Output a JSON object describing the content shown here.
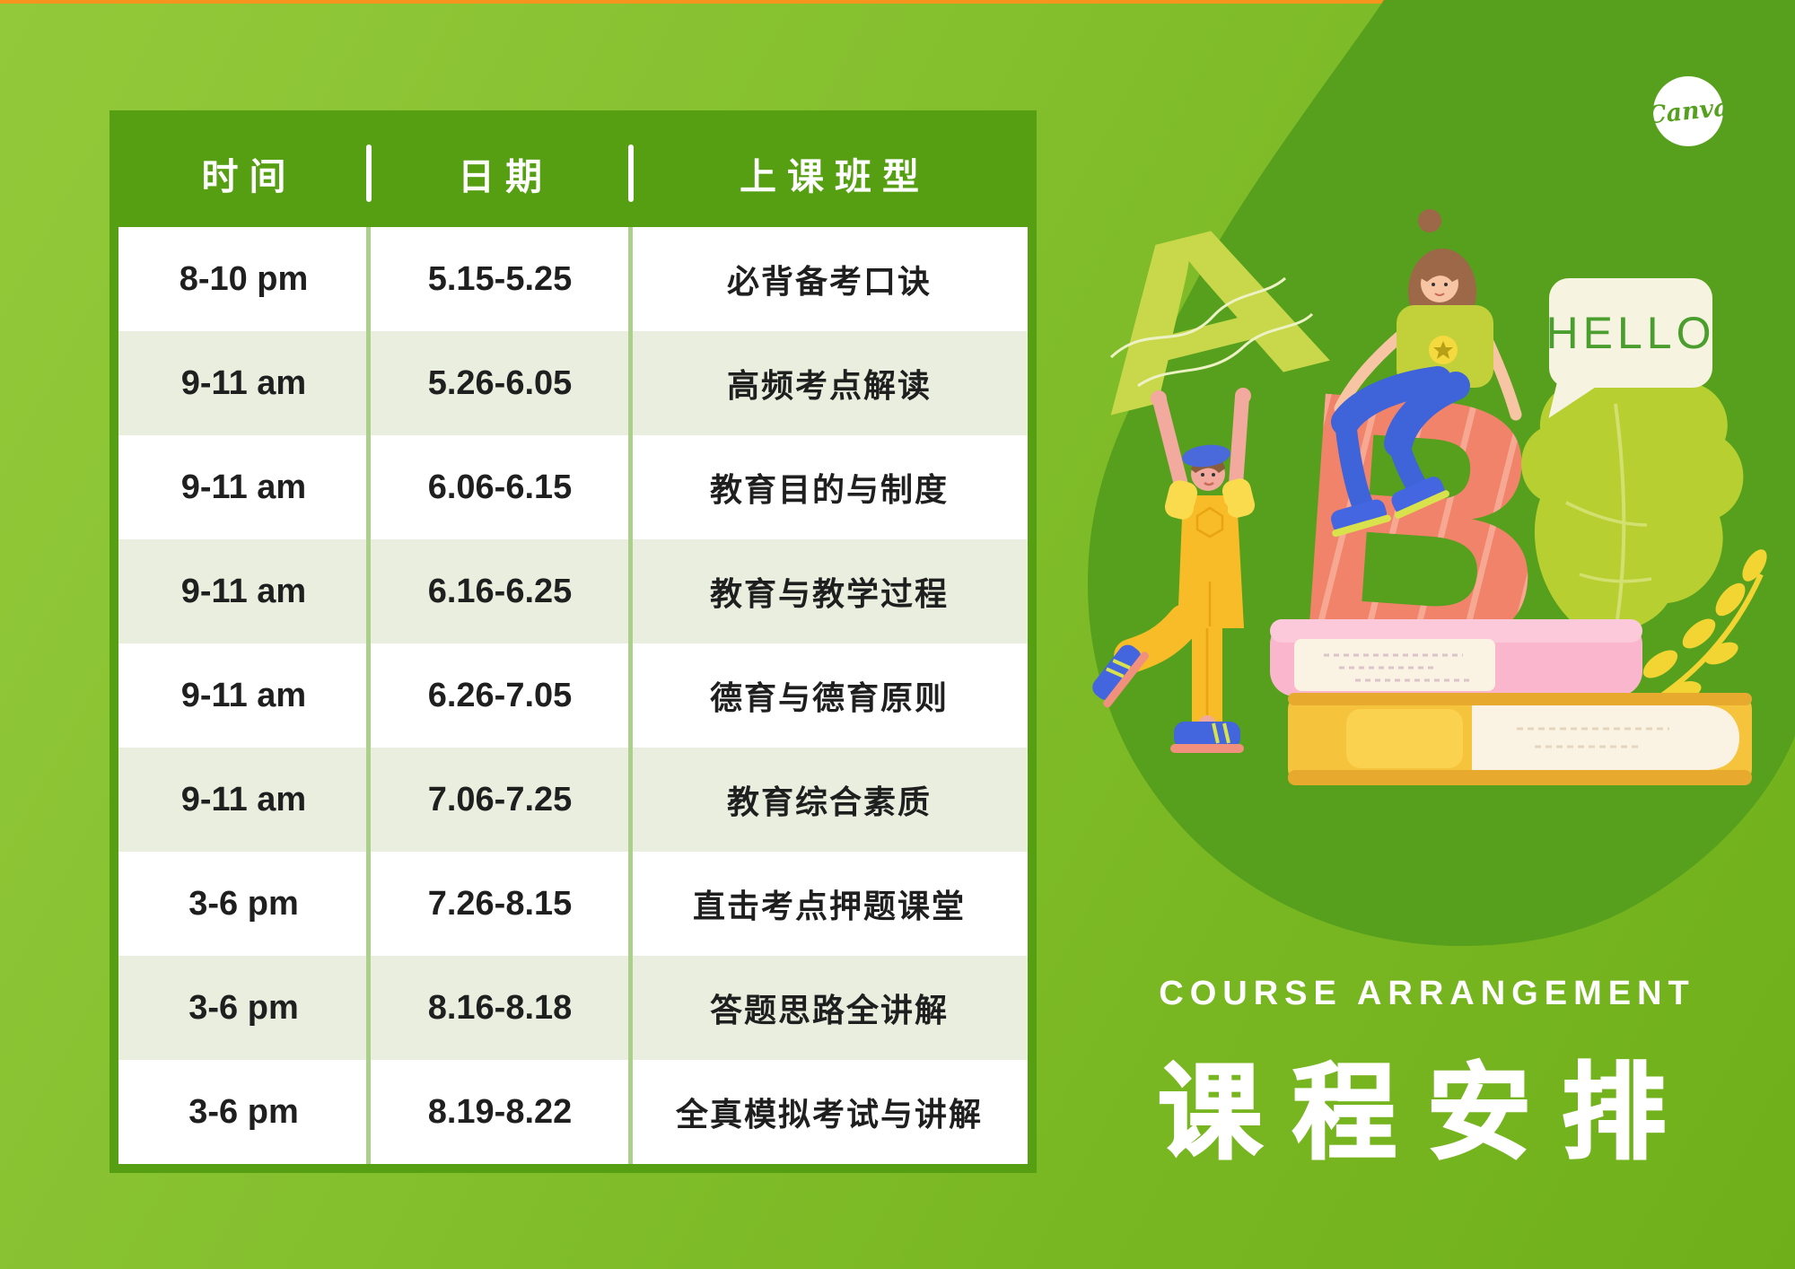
{
  "brand": {
    "logo_text": "Canva"
  },
  "speech_bubble": {
    "text": "HELLO"
  },
  "titles": {
    "subtitle_en": "COURSE ARRANGEMENT",
    "title_zh": "课程安排"
  },
  "table": {
    "headers": [
      "时间",
      "日期",
      "上课班型"
    ],
    "rows": [
      [
        "8-10 pm",
        "5.15-5.25",
        "必背备考口诀"
      ],
      [
        "9-11 am",
        "5.26-6.05",
        "高频考点解读"
      ],
      [
        "9-11 am",
        "6.06-6.15",
        "教育目的与制度"
      ],
      [
        "9-11 am",
        "6.16-6.25",
        "教育与教学过程"
      ],
      [
        "9-11 am",
        "6.26-7.05",
        "德育与德育原则"
      ],
      [
        "9-11 am",
        "7.06-7.25",
        "教育综合素质"
      ],
      [
        "3-6 pm",
        "7.26-8.15",
        "直击考点押题课堂"
      ],
      [
        "3-6 pm",
        "8.16-8.18",
        "答题思路全讲解"
      ],
      [
        "3-6 pm",
        "8.19-8.22",
        "全真模拟考试与讲解"
      ]
    ]
  },
  "colors": {
    "background_top_left": "#92c93a",
    "background_bottom_right": "#6fb01a",
    "blob_green": "#56a01e",
    "table_frame_green": "#569f12",
    "row_alt_green": "#e9eedf",
    "column_divider": "#abd08b",
    "top_accent_line": "#f7941e",
    "bubble_cream": "#f7f3e1",
    "bubble_text_green": "#4a9e2d",
    "letter_a_green": "#c9d84b",
    "letter_b_coral": "#f0836a",
    "cell_text": "#1f1f1f",
    "title_text": "#ffffff"
  }
}
